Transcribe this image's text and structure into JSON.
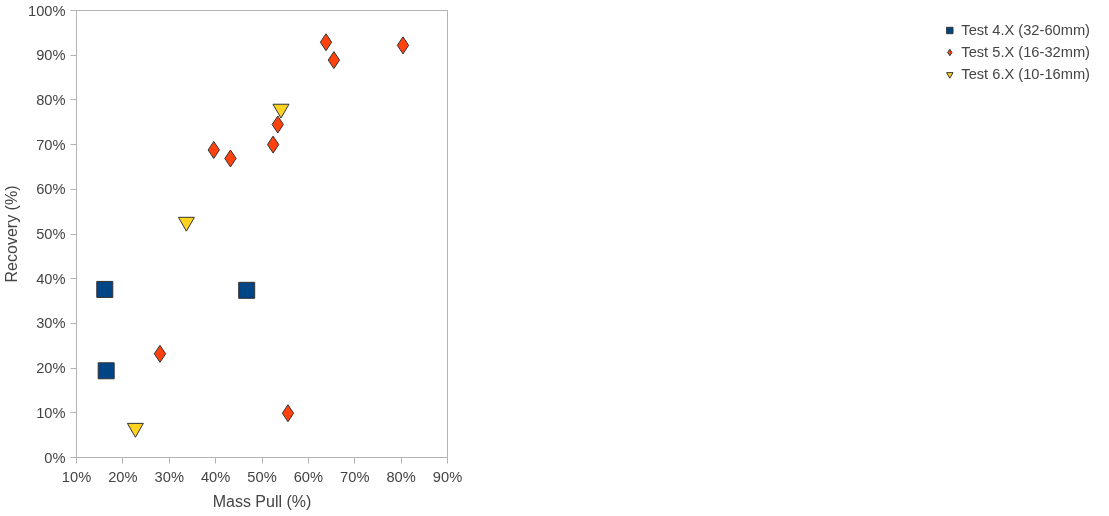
{
  "chart_data": {
    "type": "scatter",
    "xlabel": "Mass Pull (%)",
    "ylabel": "Recovery (%)",
    "xlim": [
      10,
      90
    ],
    "ylim": [
      0,
      100
    ],
    "xticks": [
      {
        "value": 10,
        "label": "10%"
      },
      {
        "value": 20,
        "label": "20%"
      },
      {
        "value": 30,
        "label": "30%"
      },
      {
        "value": 40,
        "label": "40%"
      },
      {
        "value": 50,
        "label": "50%"
      },
      {
        "value": 60,
        "label": "60%"
      },
      {
        "value": 70,
        "label": "70%"
      },
      {
        "value": 80,
        "label": "80%"
      },
      {
        "value": 90,
        "label": "90%"
      }
    ],
    "yticks": [
      {
        "value": 0,
        "label": "0%"
      },
      {
        "value": 10,
        "label": "10%"
      },
      {
        "value": 20,
        "label": "20%"
      },
      {
        "value": 30,
        "label": "30%"
      },
      {
        "value": 40,
        "label": "40%"
      },
      {
        "value": 50,
        "label": "50%"
      },
      {
        "value": 60,
        "label": "60%"
      },
      {
        "value": 70,
        "label": "70%"
      },
      {
        "value": 80,
        "label": "80%"
      },
      {
        "value": 90,
        "label": "90%"
      },
      {
        "value": 100,
        "label": "100%"
      }
    ],
    "grid": false,
    "legend": "right",
    "series": [
      {
        "name": "Test 4.X (32-60mm)",
        "color": "#004586",
        "marker": "square",
        "x": [
          16.1,
          16.4,
          46.7
        ],
        "values": [
          37.6,
          19.4,
          37.4
        ]
      },
      {
        "name": "Test 5.X (16-32mm)",
        "color": "#ff420e",
        "marker": "diamond",
        "x": [
          28.0,
          39.6,
          43.2,
          52.4,
          53.4,
          55.6,
          63.8,
          65.5,
          80.4
        ],
        "values": [
          23.2,
          68.8,
          66.9,
          70.0,
          74.5,
          9.9,
          92.9,
          88.9,
          92.2
        ]
      },
      {
        "name": "Test 6.X (10-16mm)",
        "color": "#ffd320",
        "marker": "triangle",
        "x": [
          22.7,
          33.7,
          54.1
        ],
        "values": [
          6.6,
          52.7,
          78.0
        ]
      }
    ]
  }
}
